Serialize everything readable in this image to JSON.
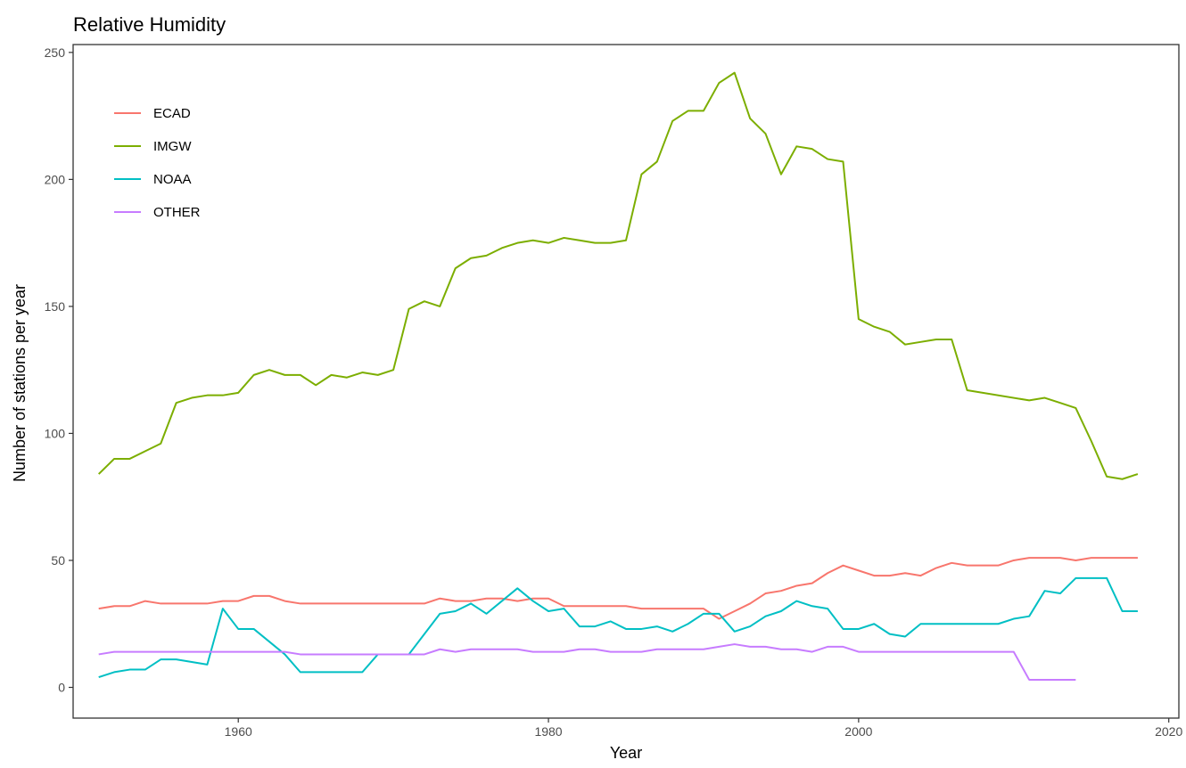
{
  "chart_data": {
    "type": "line",
    "title": "Relative Humidity",
    "xlabel": "Year",
    "ylabel": "Number of stations per year",
    "xlim": [
      1949.35,
      2020.65
    ],
    "ylim": [
      -12.1,
      253.1
    ],
    "x_ticks": [
      1960,
      1980,
      2000,
      2020
    ],
    "y_ticks": [
      0,
      50,
      100,
      150,
      200,
      250
    ],
    "grid": false,
    "legend_position": "top-left",
    "series": [
      {
        "name": "ECAD",
        "color": "#F8766D",
        "x": [
          1951,
          1952,
          1953,
          1954,
          1955,
          1956,
          1957,
          1958,
          1959,
          1960,
          1961,
          1962,
          1963,
          1964,
          1965,
          1966,
          1967,
          1968,
          1969,
          1970,
          1971,
          1972,
          1973,
          1974,
          1975,
          1976,
          1977,
          1978,
          1979,
          1980,
          1981,
          1982,
          1983,
          1984,
          1985,
          1986,
          1987,
          1988,
          1989,
          1990,
          1991,
          1992,
          1993,
          1994,
          1995,
          1996,
          1997,
          1998,
          1999,
          2000,
          2001,
          2002,
          2003,
          2004,
          2005,
          2006,
          2007,
          2008,
          2009,
          2010,
          2011,
          2012,
          2013,
          2014,
          2015,
          2016,
          2017,
          2018
        ],
        "y": [
          31,
          32,
          32,
          34,
          33,
          33,
          33,
          33,
          34,
          34,
          36,
          36,
          34,
          33,
          33,
          33,
          33,
          33,
          33,
          33,
          33,
          33,
          35,
          34,
          34,
          35,
          35,
          34,
          35,
          35,
          32,
          32,
          32,
          32,
          32,
          31,
          31,
          31,
          31,
          31,
          27,
          30,
          33,
          37,
          38,
          40,
          41,
          45,
          48,
          46,
          44,
          44,
          45,
          44,
          47,
          49,
          48,
          48,
          48,
          50,
          51,
          51,
          51,
          50,
          51,
          51,
          51,
          51
        ]
      },
      {
        "name": "IMGW",
        "color": "#7CAE00",
        "x": [
          1951,
          1952,
          1953,
          1954,
          1955,
          1956,
          1957,
          1958,
          1959,
          1960,
          1961,
          1962,
          1963,
          1964,
          1965,
          1966,
          1967,
          1968,
          1969,
          1970,
          1971,
          1972,
          1973,
          1974,
          1975,
          1976,
          1977,
          1978,
          1979,
          1980,
          1981,
          1982,
          1983,
          1984,
          1985,
          1986,
          1987,
          1988,
          1989,
          1990,
          1991,
          1992,
          1993,
          1994,
          1995,
          1996,
          1997,
          1998,
          1999,
          2000,
          2001,
          2002,
          2003,
          2004,
          2005,
          2006,
          2007,
          2011,
          2012,
          2013,
          2014,
          2015,
          2016,
          2017,
          2018
        ],
        "y": [
          84,
          90,
          90,
          93,
          96,
          112,
          114,
          115,
          115,
          116,
          123,
          125,
          123,
          123,
          119,
          123,
          122,
          124,
          123,
          125,
          149,
          152,
          150,
          165,
          169,
          170,
          173,
          175,
          176,
          175,
          177,
          176,
          175,
          175,
          176,
          202,
          207,
          223,
          227,
          227,
          238,
          242,
          224,
          218,
          202,
          213,
          212,
          208,
          207,
          145,
          142,
          140,
          135,
          136,
          137,
          137,
          117,
          113,
          114,
          112,
          110,
          97,
          83,
          82,
          84
        ]
      },
      {
        "name": "NOAA",
        "color": "#00BFC4",
        "x": [
          1951,
          1952,
          1953,
          1954,
          1955,
          1956,
          1957,
          1958,
          1959,
          1960,
          1961,
          1962,
          1963,
          1964,
          1965,
          1966,
          1967,
          1968,
          1969,
          1970,
          1971,
          1972,
          1973,
          1974,
          1975,
          1976,
          1977,
          1978,
          1979,
          1980,
          1981,
          1982,
          1983,
          1984,
          1985,
          1986,
          1987,
          1988,
          1989,
          1990,
          1991,
          1992,
          1993,
          1994,
          1995,
          1996,
          1997,
          1998,
          1999,
          2000,
          2001,
          2002,
          2003,
          2004,
          2005,
          2006,
          2007,
          2008,
          2009,
          2010,
          2011,
          2012,
          2013,
          2014,
          2015,
          2016,
          2017,
          2018
        ],
        "y": [
          4,
          6,
          7,
          7,
          11,
          11,
          10,
          9,
          31,
          23,
          23,
          18,
          13,
          6,
          6,
          6,
          6,
          6,
          13,
          13,
          13,
          21,
          29,
          30,
          33,
          29,
          34,
          39,
          34,
          30,
          31,
          24,
          24,
          26,
          23,
          23,
          24,
          22,
          25,
          29,
          29,
          22,
          24,
          28,
          30,
          34,
          32,
          31,
          23,
          23,
          25,
          21,
          20,
          25,
          25,
          25,
          25,
          25,
          25,
          27,
          28,
          38,
          37,
          43,
          43,
          43,
          30,
          30
        ]
      },
      {
        "name": "OTHER",
        "color": "#C77CFF",
        "x": [
          1951,
          1952,
          1953,
          1954,
          1955,
          1956,
          1957,
          1958,
          1959,
          1960,
          1961,
          1962,
          1963,
          1964,
          1965,
          1966,
          1967,
          1968,
          1969,
          1970,
          1971,
          1972,
          1973,
          1974,
          1975,
          1976,
          1977,
          1978,
          1979,
          1980,
          1981,
          1982,
          1983,
          1984,
          1985,
          1986,
          1987,
          1988,
          1989,
          1990,
          1991,
          1992,
          1993,
          1994,
          1995,
          1996,
          1997,
          1998,
          1999,
          2000,
          2001,
          2002,
          2003,
          2004,
          2005,
          2006,
          2007,
          2008,
          2009,
          2010,
          2011,
          2012,
          2013,
          2014
        ],
        "y": [
          13,
          14,
          14,
          14,
          14,
          14,
          14,
          14,
          14,
          14,
          14,
          14,
          14,
          13,
          13,
          13,
          13,
          13,
          13,
          13,
          13,
          13,
          15,
          14,
          15,
          15,
          15,
          15,
          14,
          14,
          14,
          15,
          15,
          14,
          14,
          14,
          15,
          15,
          15,
          15,
          16,
          17,
          16,
          16,
          15,
          15,
          14,
          16,
          16,
          14,
          14,
          14,
          14,
          14,
          14,
          14,
          14,
          14,
          14,
          14,
          3,
          3,
          3,
          3
        ]
      }
    ]
  }
}
